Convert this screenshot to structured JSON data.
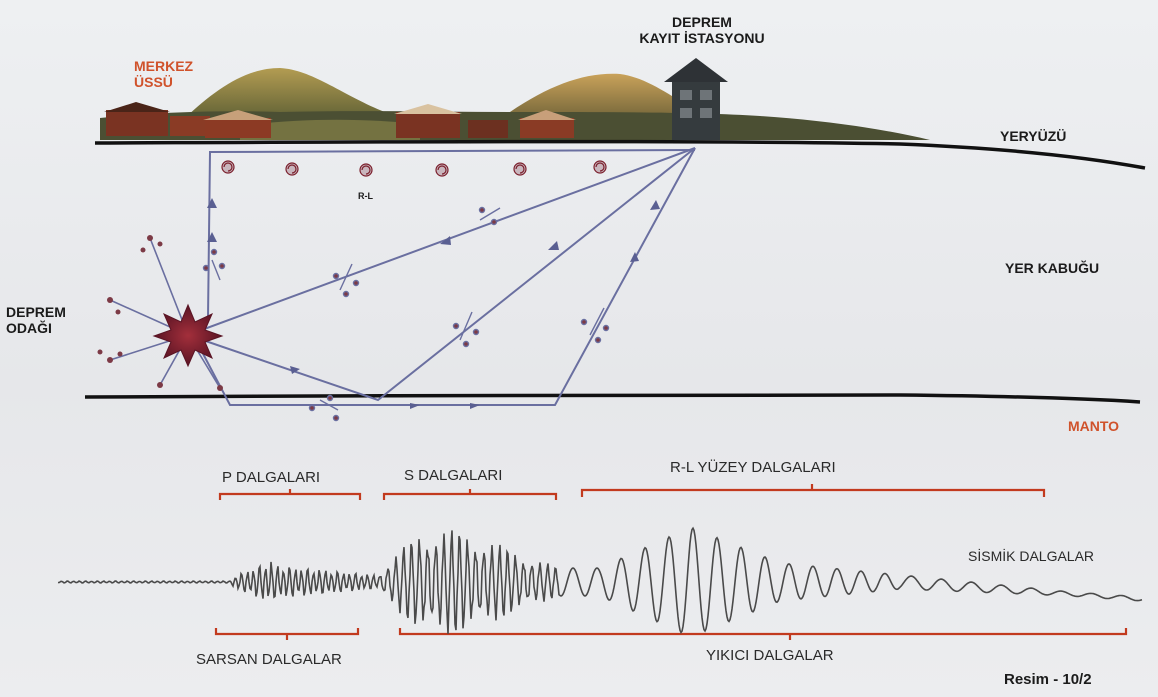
{
  "labels": {
    "epicenter": [
      "MERKEZ",
      "ÜSSÜ"
    ],
    "station": [
      "DEPREM",
      "KAYIT İSTASYONU"
    ],
    "surface": "YERYÜZÜ",
    "crust": "YER KABUĞU",
    "focus": [
      "DEPREM",
      "ODAĞI"
    ],
    "mantle": "MANTO",
    "p_waves": "P DALGALARI",
    "s_waves": "S DALGALARI",
    "surface_waves": "R-L YÜZEY DALGALARI",
    "seismic_waves": "SİSMİK DALGALAR",
    "shaking_waves": "SARSAN DALGALAR",
    "destructive_waves": "YIKICI DALGALAR",
    "wave_marker": "R-L",
    "figure": "Resim - 10/2"
  },
  "colors": {
    "accent_orange": "#d0522b",
    "bracket_red": "#c23a1e",
    "ray_purple": "#6a6fa0",
    "ground_line": "#111111",
    "focus_red": "#7b1f2c"
  }
}
